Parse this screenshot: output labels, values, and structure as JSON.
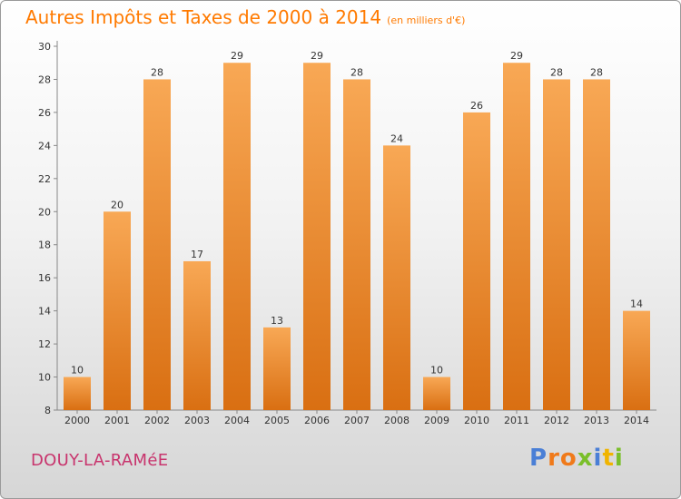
{
  "header": {
    "title": "Autres Impôts et Taxes de 2000 à 2014",
    "unit": "(en milliers d'€)"
  },
  "footer": {
    "commune": "DOUY-LA-RAMéE",
    "logo_letters": [
      "P",
      "r",
      "o",
      "x",
      "i",
      "t",
      "i"
    ]
  },
  "colors": {
    "title": "#ff7a00",
    "commune": "#c8346d",
    "bar_top": "#f8a855",
    "bar_bottom": "#d96f12",
    "logo": [
      "#4a7fd6",
      "#f07a1a",
      "#f07a1a",
      "#7abf2a",
      "#4a7fd6",
      "#f0b400",
      "#7abf2a"
    ]
  },
  "chart_data": {
    "type": "bar",
    "title": "Autres Impôts et Taxes de 2000 à 2014",
    "subtitle": "(en milliers d'€)",
    "xlabel": "",
    "ylabel": "",
    "categories": [
      "2000",
      "2001",
      "2002",
      "2003",
      "2004",
      "2005",
      "2006",
      "2007",
      "2008",
      "2009",
      "2010",
      "2011",
      "2012",
      "2013",
      "2014"
    ],
    "values": [
      10,
      20,
      28,
      17,
      29,
      13,
      29,
      28,
      24,
      10,
      26,
      29,
      28,
      28,
      14
    ],
    "ylim": [
      8,
      30
    ],
    "yticks": [
      8,
      10,
      12,
      14,
      16,
      18,
      20,
      22,
      24,
      26,
      28,
      30
    ],
    "grid": false,
    "legend": "none"
  }
}
